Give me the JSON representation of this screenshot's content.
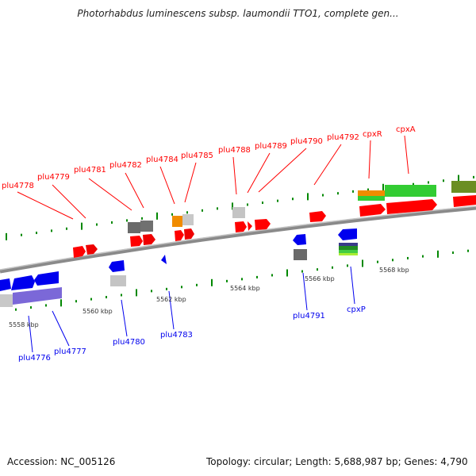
{
  "title": "Photorhabdus luminescens subsp. laumondii TTO1, complete gen...",
  "footer": {
    "accession": "Accession: NC_005126",
    "summary": "Topology: circular; Length: 5,688,987 bp; Genes: 4,790"
  },
  "colors": {
    "forward_label": "#ff0000",
    "reverse_label": "#0000ee",
    "tick": "#008800",
    "backbone": "#888888",
    "forward_gene": "#ff0000",
    "reverse_gene": "#0000ee"
  },
  "scale": {
    "unit": "kbp",
    "ticks": [
      "5558 kbp",
      "5560 kbp",
      "5562 kbp",
      "5564 kbp",
      "5566 kbp",
      "5568 kbp"
    ]
  },
  "forward_genes": [
    "plu4778",
    "plu4779",
    "plu4781",
    "plu4782",
    "plu4784",
    "plu4785",
    "plu4788",
    "plu4789",
    "plu4790",
    "plu4792",
    "cpxR",
    "cpxA"
  ],
  "reverse_genes": [
    "plu4776",
    "plu4777",
    "plu4780",
    "plu4783",
    "plu4791",
    "cpxP"
  ]
}
